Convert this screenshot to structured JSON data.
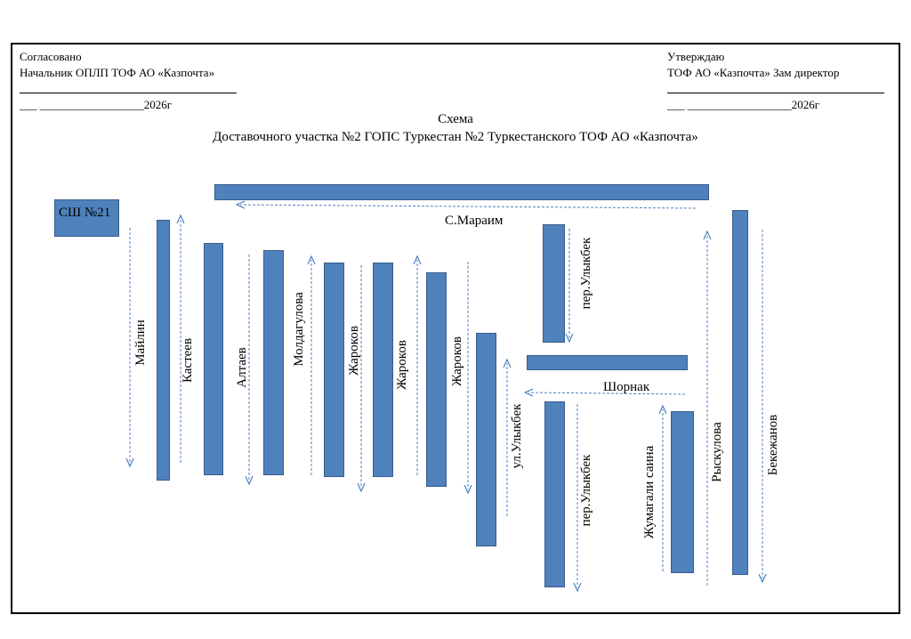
{
  "header": {
    "left": {
      "line1": "Согласовано",
      "line2": "Начальник ОПЛП ТОФ АО «Казпочта»",
      "date_suffix": "2026г",
      "date_prefix": "___ __________________"
    },
    "right": {
      "line1": "Утверждаю",
      "line2": "ТОФ АО «Казпочта» Зам директор",
      "date_suffix": "2026г",
      "date_prefix": "___ __________________"
    }
  },
  "title": {
    "line1": "Схема",
    "line2": "Доставочного участка №2 ГОПС Туркестан №2 Туркестанского ТОФ АО «Казпочта»"
  },
  "school": "СШ №21",
  "streets": {
    "maimain": "С.Мараим",
    "shornak": "Шорнак",
    "mailin": "Майлин",
    "kasteev": "Кастеев",
    "altaev": "Алтаев",
    "moldagulova": "Молдагулова",
    "zharokov1": "Жароков",
    "zharokov2": "Жароков",
    "zharokov3": "Жароков",
    "ul_ulykbek": "ул.Улыкбек",
    "per_ulykbek_top": "пер.Улыкбек",
    "per_ulykbek_bottom": "пер.Улыкбек",
    "zhumagali": "Жумагали саина",
    "ryskulova": "Рыскулова",
    "bekezhanov": "Бекежанов"
  },
  "colors": {
    "street_fill": "#4f81bd",
    "street_border": "#385d8a",
    "arrow": "#4f81bd"
  }
}
